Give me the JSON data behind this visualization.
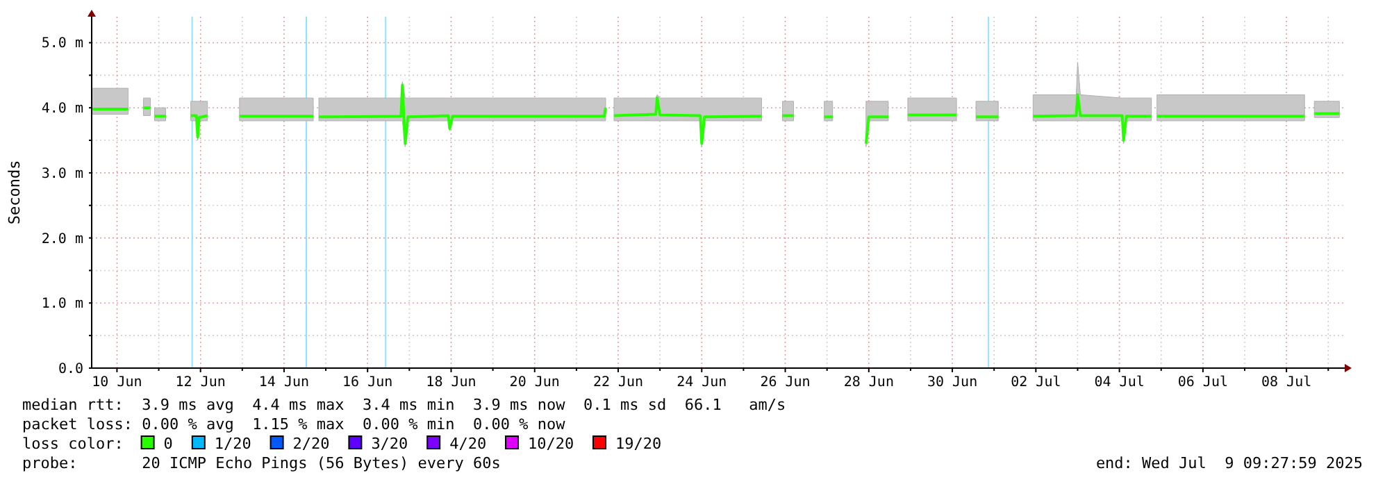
{
  "chart_data": {
    "type": "line",
    "ylabel": "Seconds",
    "legend_title": "loss color:",
    "legend": "bottom",
    "grid": true,
    "xlim": [
      "2025-06-09T09:28",
      "2025-07-09T09:28"
    ],
    "xticks": [
      {
        "value": "2025-06-10",
        "label": "10 Jun"
      },
      {
        "value": "2025-06-11",
        "label": null
      },
      {
        "value": "2025-06-12",
        "label": "12 Jun"
      },
      {
        "value": "2025-06-13",
        "label": null
      },
      {
        "value": "2025-06-14",
        "label": "14 Jun"
      },
      {
        "value": "2025-06-15",
        "label": null
      },
      {
        "value": "2025-06-16",
        "label": "16 Jun"
      },
      {
        "value": "2025-06-17",
        "label": null
      },
      {
        "value": "2025-06-18",
        "label": "18 Jun"
      },
      {
        "value": "2025-06-19",
        "label": null
      },
      {
        "value": "2025-06-20",
        "label": "20 Jun"
      },
      {
        "value": "2025-06-21",
        "label": null
      },
      {
        "value": "2025-06-22",
        "label": "22 Jun"
      },
      {
        "value": "2025-06-23",
        "label": null
      },
      {
        "value": "2025-06-24",
        "label": "24 Jun"
      },
      {
        "value": "2025-06-25",
        "label": null
      },
      {
        "value": "2025-06-26",
        "label": "26 Jun"
      },
      {
        "value": "2025-06-27",
        "label": null
      },
      {
        "value": "2025-06-28",
        "label": "28 Jun"
      },
      {
        "value": "2025-06-29",
        "label": null
      },
      {
        "value": "2025-06-30",
        "label": "30 Jun"
      },
      {
        "value": "2025-07-01",
        "label": null
      },
      {
        "value": "2025-07-02",
        "label": "02 Jul"
      },
      {
        "value": "2025-07-03",
        "label": null
      },
      {
        "value": "2025-07-04",
        "label": "04 Jul"
      },
      {
        "value": "2025-07-05",
        "label": null
      },
      {
        "value": "2025-07-06",
        "label": "06 Jul"
      },
      {
        "value": "2025-07-07",
        "label": null
      },
      {
        "value": "2025-07-08",
        "label": "08 Jul"
      },
      {
        "value": "2025-07-09",
        "label": null
      }
    ],
    "ylim": [
      0,
      5.4
    ],
    "yticks": [
      {
        "value": 0,
        "label": "0.0"
      },
      {
        "value": 0.5,
        "label": null
      },
      {
        "value": 1,
        "label": "1.0 m"
      },
      {
        "value": 1.5,
        "label": null
      },
      {
        "value": 2,
        "label": "2.0 m"
      },
      {
        "value": 2.5,
        "label": null
      },
      {
        "value": 3,
        "label": "3.0 m"
      },
      {
        "value": 3.5,
        "label": null
      },
      {
        "value": 4,
        "label": "4.0 m"
      },
      {
        "value": 4.5,
        "label": null
      },
      {
        "value": 5,
        "label": "5.0 m"
      }
    ],
    "ref_lines": [
      {
        "axis": "x",
        "value": "2025-06-11T19:12",
        "color": "#8fe3ff"
      },
      {
        "axis": "x",
        "value": "2025-06-14T12:48",
        "color": "#8fe3ff"
      },
      {
        "axis": "x",
        "value": "2025-06-16T10:24",
        "color": "#8fe3ff"
      },
      {
        "axis": "x",
        "value": "2025-06-30T20:48",
        "color": "#8fe3ff"
      }
    ],
    "series": [
      {
        "name": "0",
        "color": "#26ff00",
        "x": [
          "2025-06-09T09:30",
          "2025-06-10T06:24",
          "2025-06-10T12:00",
          "2025-06-10T15:12",
          "2025-06-10T19:12",
          "2025-06-10T20:00",
          "2025-06-10T21:36",
          "2025-06-11T04:00",
          "2025-06-11T10:00",
          "2025-06-11T18:24",
          "2025-06-11T21:36",
          "2025-06-11T22:24",
          "2025-06-11T23:12",
          "2025-06-12T04:00",
          "2025-06-12T12:00",
          "2025-06-12T22:24",
          "2025-06-14T16:48",
          "2025-06-14T18:00",
          "2025-06-14T20:00",
          "2025-06-16T19:12",
          "2025-06-16T20:00",
          "2025-06-16T21:36",
          "2025-06-16T23:12",
          "2025-06-17T22:24",
          "2025-06-17T23:12",
          "2025-06-18T00:48",
          "2025-06-21T16:00",
          "2025-06-21T16:48",
          "2025-06-21T19:00",
          "2025-06-21T21:36",
          "2025-06-22T21:36",
          "2025-06-22T22:24",
          "2025-06-23T00:00",
          "2025-06-23T23:12",
          "2025-06-24T00:00",
          "2025-06-24T01:36",
          "2025-06-25T10:24",
          "2025-06-25T16:00",
          "2025-06-25T22:24",
          "2025-06-26T04:48",
          "2025-06-26T12:00",
          "2025-06-26T22:24",
          "2025-06-27T03:12",
          "2025-06-27T12:00",
          "2025-06-27T22:24",
          "2025-06-28T00:00",
          "2025-06-28T11:12",
          "2025-06-28T16:00",
          "2025-06-28T22:24",
          "2025-06-30T02:24",
          "2025-06-30T08:00",
          "2025-06-30T13:36",
          "2025-07-01T02:24",
          "2025-07-01T12:00",
          "2025-07-01T22:24",
          "2025-07-02T23:12",
          "2025-07-03T00:00",
          "2025-07-03T01:36",
          "2025-07-04T01:36",
          "2025-07-04T02:24",
          "2025-07-04T04:00",
          "2025-07-04T18:24",
          "2025-07-04T20:00",
          "2025-07-04T21:36",
          "2025-07-08T10:24",
          "2025-07-08T13:00",
          "2025-07-08T16:00",
          "2025-07-09T06:24"
        ],
        "values": [
          3.98,
          3.98,
          null,
          4.0,
          4.0,
          null,
          3.87,
          3.87,
          null,
          3.88,
          3.88,
          3.55,
          3.85,
          3.88,
          null,
          3.87,
          3.87,
          null,
          3.86,
          3.87,
          4.35,
          3.45,
          3.86,
          3.88,
          3.68,
          3.87,
          3.87,
          4.0,
          null,
          3.88,
          3.9,
          4.15,
          3.89,
          3.88,
          3.45,
          3.86,
          3.87,
          null,
          3.88,
          3.88,
          null,
          3.86,
          3.86,
          null,
          3.45,
          3.86,
          3.86,
          null,
          3.89,
          3.89,
          null,
          3.86,
          3.86,
          null,
          3.87,
          3.88,
          4.2,
          3.88,
          3.88,
          3.5,
          3.87,
          3.87,
          null,
          3.87,
          3.87,
          null,
          3.91,
          3.91
        ],
        "lower": [
          3.9,
          3.9,
          null,
          3.88,
          3.88,
          null,
          3.8,
          3.8,
          null,
          3.8,
          3.8,
          3.5,
          3.8,
          3.8,
          null,
          3.8,
          3.8,
          null,
          3.8,
          3.8,
          3.8,
          3.4,
          3.8,
          3.8,
          3.65,
          3.8,
          3.8,
          3.8,
          null,
          3.8,
          3.8,
          3.8,
          3.8,
          3.8,
          3.4,
          3.8,
          3.8,
          null,
          3.8,
          3.8,
          null,
          3.8,
          3.8,
          null,
          3.4,
          3.8,
          3.8,
          null,
          3.8,
          3.8,
          null,
          3.8,
          3.8,
          null,
          3.8,
          3.8,
          3.8,
          3.8,
          3.8,
          3.45,
          3.8,
          3.8,
          null,
          3.8,
          3.8,
          null,
          3.85,
          3.85
        ],
        "upper": [
          4.3,
          4.3,
          null,
          4.15,
          4.15,
          null,
          4.0,
          4.0,
          null,
          4.1,
          4.1,
          4.1,
          4.1,
          4.1,
          null,
          4.15,
          4.15,
          null,
          4.15,
          4.15,
          4.4,
          4.15,
          4.15,
          4.15,
          4.15,
          4.15,
          4.15,
          4.15,
          null,
          4.15,
          4.15,
          4.2,
          4.15,
          4.15,
          4.15,
          4.15,
          4.15,
          null,
          4.1,
          4.1,
          null,
          4.1,
          4.1,
          null,
          4.1,
          4.1,
          4.1,
          null,
          4.15,
          4.15,
          null,
          4.1,
          4.1,
          null,
          4.2,
          4.2,
          4.7,
          4.2,
          4.15,
          4.15,
          4.15,
          4.15,
          null,
          4.2,
          4.2,
          null,
          4.1,
          4.1
        ]
      },
      {
        "name": "1/20",
        "color": "#00b8ff"
      },
      {
        "name": "2/20",
        "color": "#0059ff"
      },
      {
        "name": "3/20",
        "color": "#5e00ff"
      },
      {
        "name": "4/20",
        "color": "#7e00ff"
      },
      {
        "name": "10/20",
        "color": "#dd00ff"
      },
      {
        "name": "19/20",
        "color": "#ff0000"
      }
    ],
    "annotations": [
      "median rtt:  3.9 ms avg  4.4 ms max  3.4 ms min  3.9 ms now  0.1 ms sd  66.1   am/s",
      "packet loss: 0.00 % avg  1.15 % max  0.00 % min  0.00 % now",
      "probe:       20 ICMP Echo Pings (56 Bytes) every 60s",
      "end: Wed Jul  9 09:27:59 2025"
    ]
  }
}
